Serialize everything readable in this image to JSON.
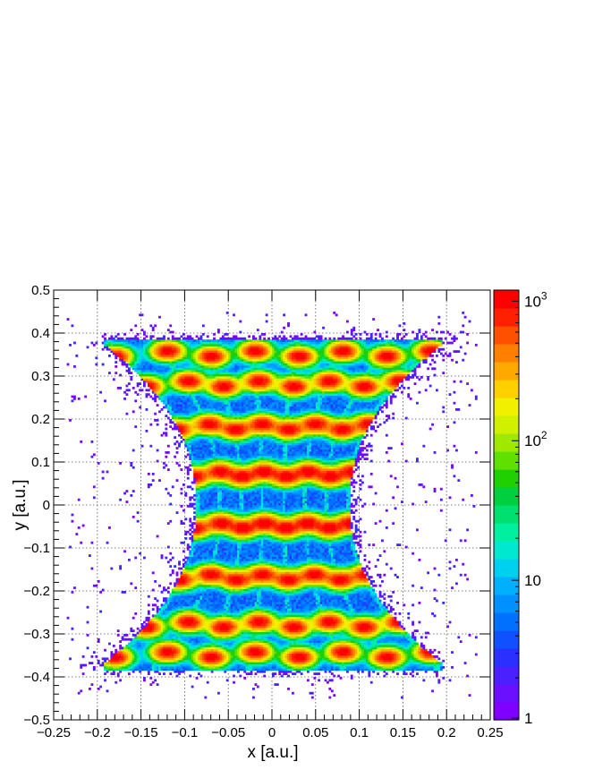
{
  "chart_data": {
    "type": "heatmap",
    "title": "",
    "xlabel": "x [a.u.]",
    "ylabel": "y [a.u.]",
    "xlim": [
      -0.25,
      0.25
    ],
    "ylim": [
      -0.5,
      0.5
    ],
    "x_ticks": [
      "−0.25",
      "−0.2",
      "−0.15",
      "−0.1",
      "−0.05",
      "0",
      "0.05",
      "0.1",
      "0.15",
      "0.2",
      "0.25"
    ],
    "y_ticks": [
      "−0.5",
      "−0.4",
      "−0.3",
      "−0.2",
      "−0.1",
      "0",
      "0.1",
      "0.2",
      "0.3",
      "0.4",
      "0.5"
    ],
    "grid": true,
    "z_scale": "log",
    "zlim": [
      1,
      1200
    ],
    "colorbar": {
      "labels": [
        {
          "base": "1",
          "exp": "",
          "value": 1
        },
        {
          "base": "10",
          "exp": "",
          "value": 10
        },
        {
          "base": "10",
          "exp": "2",
          "value": 100
        },
        {
          "base": "10",
          "exp": "3",
          "value": 1000
        }
      ],
      "colors": [
        "#8000ff",
        "#6a10ff",
        "#4a20ff",
        "#2a30ff",
        "#1050ff",
        "#0070ff",
        "#0090ff",
        "#00b0ff",
        "#00d0f0",
        "#00e8d0",
        "#00f0a0",
        "#00e070",
        "#00d040",
        "#20d000",
        "#60e000",
        "#a0e800",
        "#d0f000",
        "#f0f000",
        "#ffd000",
        "#ffa800",
        "#ff8000",
        "#ff5000",
        "#ff2000",
        "#ff0000"
      ]
    },
    "description_pattern": "pincushion grid of peaks",
    "peak_rows_y": [
      0.35,
      0.28,
      0.18,
      0.07,
      -0.05,
      -0.17,
      -0.28,
      -0.35
    ],
    "peak_columns_x": [
      -0.18,
      -0.12,
      -0.07,
      -0.02,
      0.03,
      0.08,
      0.13,
      0.18
    ]
  }
}
